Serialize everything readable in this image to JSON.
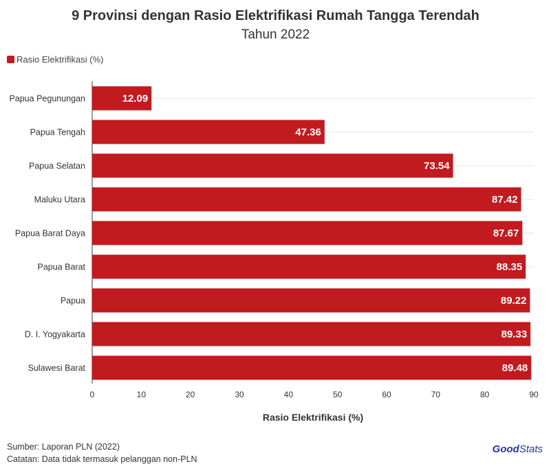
{
  "colors": {
    "bar": "#c11b20",
    "grid": "#e6e6e6",
    "axis": "#333333",
    "brand": "#1f3a93"
  },
  "chart_data": {
    "type": "bar",
    "orientation": "horizontal",
    "title": "9 Provinsi dengan Rasio Elektrifikasi Rumah Tangga Terendah",
    "subtitle": "Tahun 2022",
    "legend": "Rasio Elektrifikasi (%)",
    "xlabel": "Rasio Elektrifikasi (%)",
    "ylabel": "",
    "xlim": [
      0,
      90
    ],
    "ticks": [
      0,
      10,
      20,
      30,
      40,
      50,
      60,
      70,
      80,
      90
    ],
    "categories": [
      "Papua Pegunungan",
      "Papua Tengah",
      "Papua Selatan",
      "Maluku Utara",
      "Papua Barat Daya",
      "Papua Barat",
      "Papua",
      "D. I. Yogyakarta",
      "Sulawesi Barat"
    ],
    "values": [
      12.09,
      47.36,
      73.54,
      87.42,
      87.67,
      88.35,
      89.22,
      89.33,
      89.48
    ],
    "value_labels": [
      "12.09",
      "47.36",
      "73.54",
      "87.42",
      "87.67",
      "88.35",
      "89.22",
      "89.33",
      "89.48"
    ]
  },
  "footer": {
    "source": "Sumber: Laporan PLN (2022)",
    "note": "Catatan: Data tidak termasuk pelanggan non-PLN"
  },
  "brand": {
    "good": "Good",
    "stats": "Stats"
  }
}
